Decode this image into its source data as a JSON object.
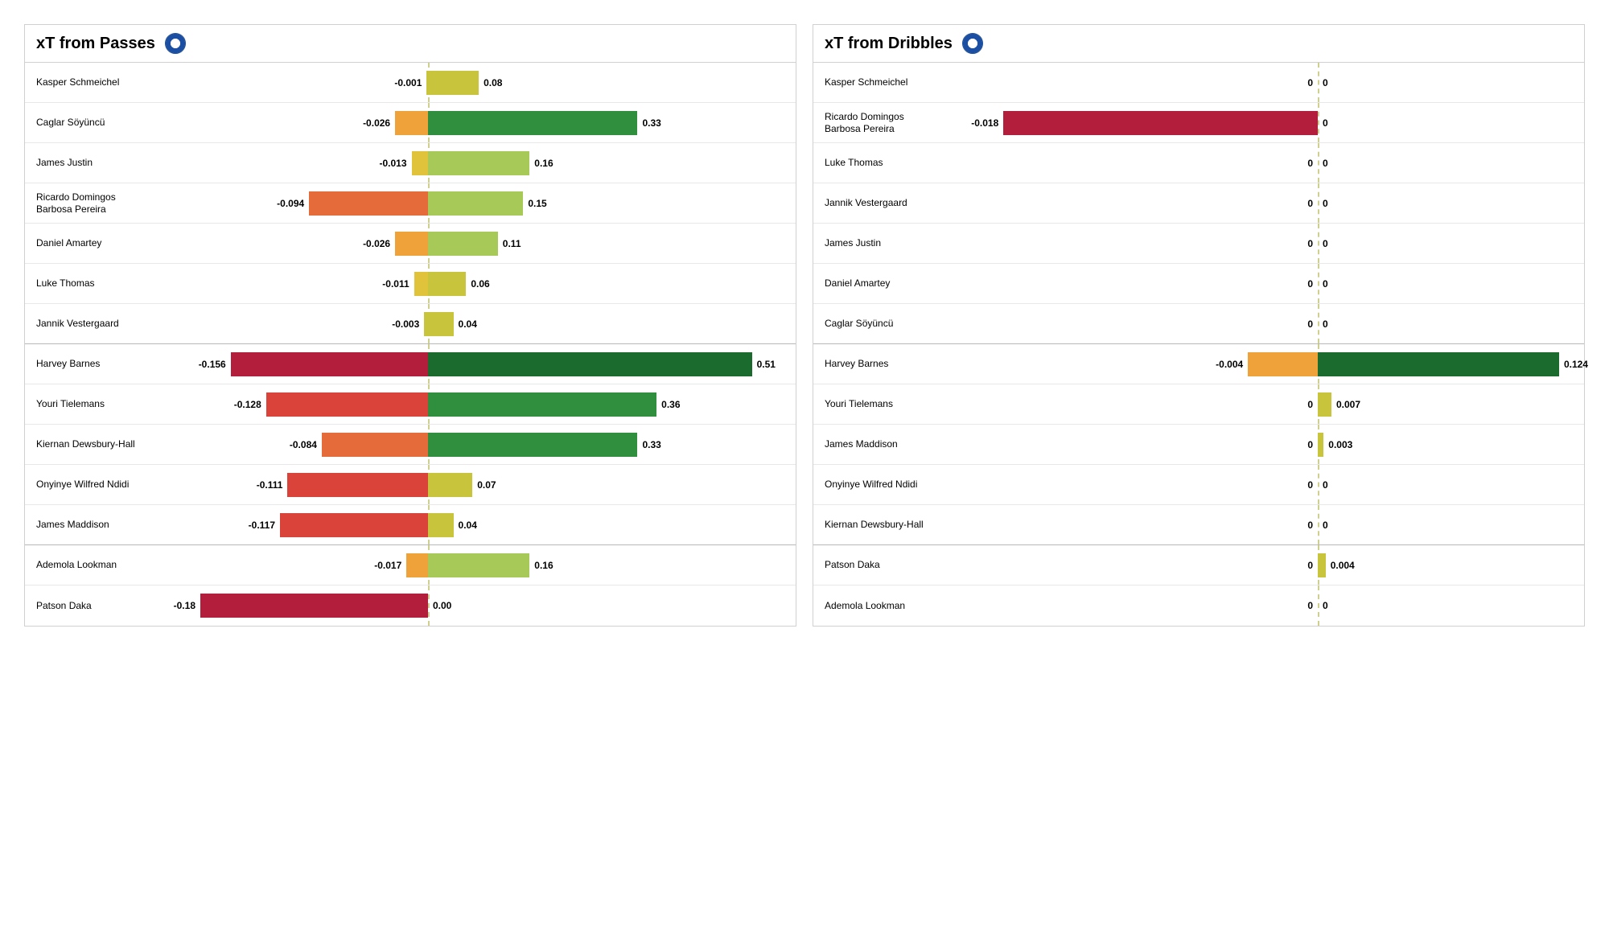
{
  "colors": {
    "c1": "#c8c43b",
    "c2": "#a7c957",
    "c3": "#6aaa3e",
    "c4": "#2f8f3f",
    "c5": "#1b6b2e",
    "n1": "#e0c33a",
    "n2": "#f0a23a",
    "n3": "#e66b3a",
    "n4": "#d9433a",
    "n5": "#b21e3c"
  },
  "panels": [
    {
      "title": "xT from Passes",
      "axis_pct": 42,
      "neg_scale": 0.2,
      "pos_scale": 0.55,
      "rows": [
        {
          "name": "Kasper Schmeichel",
          "neg": -0.001,
          "pos": 0.08,
          "neg_label": "-0.001",
          "pos_label": "0.08",
          "neg_color": "c1",
          "pos_color": "c1",
          "group_end": false
        },
        {
          "name": "Caglar Söyüncü",
          "neg": -0.026,
          "pos": 0.33,
          "neg_label": "-0.026",
          "pos_label": "0.33",
          "neg_color": "n2",
          "pos_color": "c4",
          "group_end": false
        },
        {
          "name": "James Justin",
          "neg": -0.013,
          "pos": 0.16,
          "neg_label": "-0.013",
          "pos_label": "0.16",
          "neg_color": "n1",
          "pos_color": "c2",
          "group_end": false
        },
        {
          "name": "Ricardo Domingos Barbosa Pereira",
          "neg": -0.094,
          "pos": 0.15,
          "neg_label": "-0.094",
          "pos_label": "0.15",
          "neg_color": "n3",
          "pos_color": "c2",
          "group_end": false
        },
        {
          "name": "Daniel Amartey",
          "neg": -0.026,
          "pos": 0.11,
          "neg_label": "-0.026",
          "pos_label": "0.11",
          "neg_color": "n2",
          "pos_color": "c2",
          "group_end": false
        },
        {
          "name": "Luke Thomas",
          "neg": -0.011,
          "pos": 0.06,
          "neg_label": "-0.011",
          "pos_label": "0.06",
          "neg_color": "n1",
          "pos_color": "c1",
          "group_end": false
        },
        {
          "name": "Jannik Vestergaard",
          "neg": -0.003,
          "pos": 0.04,
          "neg_label": "-0.003",
          "pos_label": "0.04",
          "neg_color": "c1",
          "pos_color": "c1",
          "group_end": true
        },
        {
          "name": "Harvey Barnes",
          "neg": -0.156,
          "pos": 0.51,
          "neg_label": "-0.156",
          "pos_label": "0.51",
          "neg_color": "n5",
          "pos_color": "c5",
          "group_end": false
        },
        {
          "name": "Youri Tielemans",
          "neg": -0.128,
          "pos": 0.36,
          "neg_label": "-0.128",
          "pos_label": "0.36",
          "neg_color": "n4",
          "pos_color": "c4",
          "group_end": false
        },
        {
          "name": "Kiernan Dewsbury-Hall",
          "neg": -0.084,
          "pos": 0.33,
          "neg_label": "-0.084",
          "pos_label": "0.33",
          "neg_color": "n3",
          "pos_color": "c4",
          "group_end": false
        },
        {
          "name": "Onyinye Wilfred Ndidi",
          "neg": -0.111,
          "pos": 0.07,
          "neg_label": "-0.111",
          "pos_label": "0.07",
          "neg_color": "n4",
          "pos_color": "c1",
          "group_end": false
        },
        {
          "name": "James Maddison",
          "neg": -0.117,
          "pos": 0.04,
          "neg_label": "-0.117",
          "pos_label": "0.04",
          "neg_color": "n4",
          "pos_color": "c1",
          "group_end": true
        },
        {
          "name": "Ademola Lookman",
          "neg": -0.017,
          "pos": 0.16,
          "neg_label": "-0.017",
          "pos_label": "0.16",
          "neg_color": "n2",
          "pos_color": "c2",
          "group_end": false
        },
        {
          "name": "Patson Daka",
          "neg": -0.18,
          "pos": 0.0,
          "neg_label": "-0.18",
          "pos_label": "0.00",
          "neg_color": "n5",
          "pos_color": "c1",
          "group_end": false
        }
      ]
    },
    {
      "title": "xT from Dribbles",
      "axis_pct": 58,
      "neg_scale": 0.02,
      "pos_scale": 0.13,
      "rows": [
        {
          "name": "Kasper Schmeichel",
          "neg": 0,
          "pos": 0,
          "neg_label": "0",
          "pos_label": "0",
          "neg_color": "c1",
          "pos_color": "c1",
          "group_end": false
        },
        {
          "name": "Ricardo Domingos Barbosa Pereira",
          "neg": -0.018,
          "pos": 0,
          "neg_label": "-0.018",
          "pos_label": "0",
          "neg_color": "n5",
          "pos_color": "c1",
          "group_end": false
        },
        {
          "name": "Luke Thomas",
          "neg": 0,
          "pos": 0,
          "neg_label": "0",
          "pos_label": "0",
          "neg_color": "c1",
          "pos_color": "c1",
          "group_end": false
        },
        {
          "name": "Jannik Vestergaard",
          "neg": 0,
          "pos": 0,
          "neg_label": "0",
          "pos_label": "0",
          "neg_color": "c1",
          "pos_color": "c1",
          "group_end": false
        },
        {
          "name": "James Justin",
          "neg": 0,
          "pos": 0,
          "neg_label": "0",
          "pos_label": "0",
          "neg_color": "c1",
          "pos_color": "c1",
          "group_end": false
        },
        {
          "name": "Daniel Amartey",
          "neg": 0,
          "pos": 0,
          "neg_label": "0",
          "pos_label": "0",
          "neg_color": "c1",
          "pos_color": "c1",
          "group_end": false
        },
        {
          "name": "Caglar Söyüncü",
          "neg": 0,
          "pos": 0,
          "neg_label": "0",
          "pos_label": "0",
          "neg_color": "c1",
          "pos_color": "c1",
          "group_end": true
        },
        {
          "name": "Harvey Barnes",
          "neg": -0.004,
          "pos": 0.124,
          "neg_label": "-0.004",
          "pos_label": "0.124",
          "neg_color": "n2",
          "pos_color": "c5",
          "group_end": false
        },
        {
          "name": "Youri Tielemans",
          "neg": 0,
          "pos": 0.007,
          "neg_label": "0",
          "pos_label": "0.007",
          "neg_color": "c1",
          "pos_color": "c1",
          "group_end": false
        },
        {
          "name": "James Maddison",
          "neg": 0,
          "pos": 0.003,
          "neg_label": "0",
          "pos_label": "0.003",
          "neg_color": "c1",
          "pos_color": "c1",
          "group_end": false
        },
        {
          "name": "Onyinye Wilfred Ndidi",
          "neg": 0,
          "pos": 0,
          "neg_label": "0",
          "pos_label": "0",
          "neg_color": "c1",
          "pos_color": "c1",
          "group_end": false
        },
        {
          "name": "Kiernan Dewsbury-Hall",
          "neg": 0,
          "pos": 0,
          "neg_label": "0",
          "pos_label": "0",
          "neg_color": "c1",
          "pos_color": "c1",
          "group_end": true
        },
        {
          "name": "Patson Daka",
          "neg": 0,
          "pos": 0.004,
          "neg_label": "0",
          "pos_label": "0.004",
          "neg_color": "c1",
          "pos_color": "c1",
          "group_end": false
        },
        {
          "name": "Ademola Lookman",
          "neg": 0,
          "pos": 0,
          "neg_label": "0",
          "pos_label": "0",
          "neg_color": "c1",
          "pos_color": "c1",
          "group_end": false
        }
      ]
    }
  ]
}
